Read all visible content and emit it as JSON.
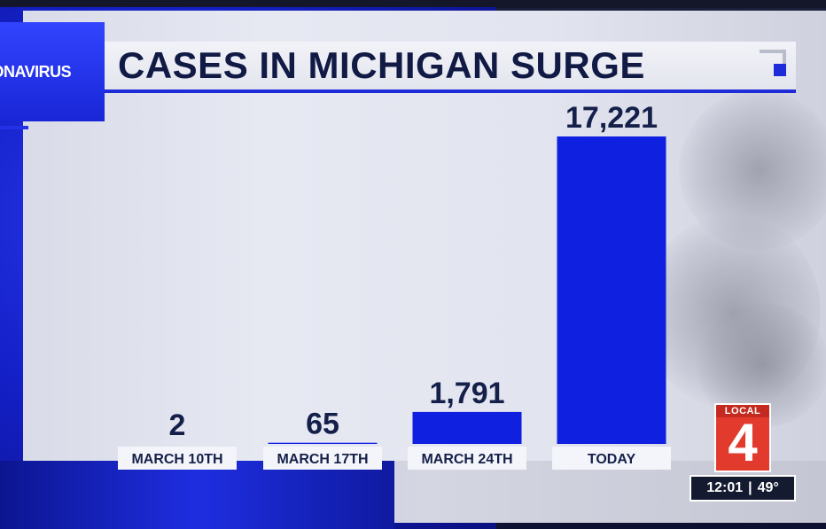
{
  "header": {
    "tag": "RONAVIRUS",
    "title": "CASES IN MICHIGAN SURGE"
  },
  "chart_data": {
    "type": "bar",
    "title": "CASES IN MICHIGAN SURGE",
    "categories": [
      "MARCH 10TH",
      "MARCH 17TH",
      "MARCH 24TH",
      "TODAY"
    ],
    "values": [
      2,
      65,
      1791,
      17221
    ],
    "value_labels": [
      "2",
      "65",
      "1,791",
      "17,221"
    ],
    "xlabel": "",
    "ylabel": "",
    "ylim": [
      0,
      17221
    ],
    "grid": false,
    "bar_color": "#1020e0"
  },
  "station": {
    "logo_top": "LOCAL",
    "logo_number": "4",
    "time": "12:01",
    "temperature": "49°"
  },
  "colors": {
    "accent": "#1d2bd8",
    "logo_red": "#e23b2e",
    "title_text": "#101a44"
  }
}
